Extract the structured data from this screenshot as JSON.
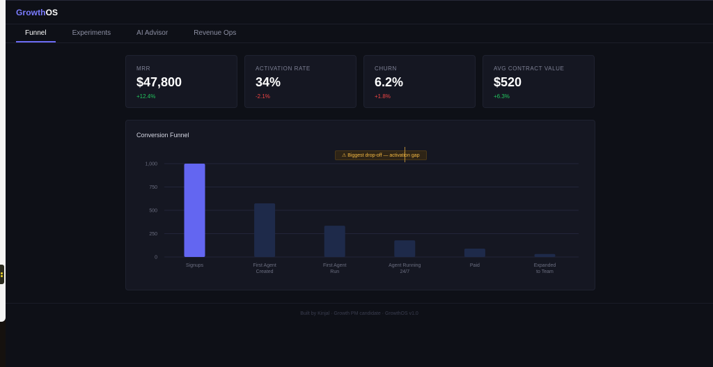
{
  "app": {
    "brand_part1": "Growth",
    "brand_part2": "OS"
  },
  "tabs": [
    {
      "label": "Funnel",
      "active": true
    },
    {
      "label": "Experiments",
      "active": false
    },
    {
      "label": "AI Advisor",
      "active": false
    },
    {
      "label": "Revenue Ops",
      "active": false
    }
  ],
  "kpis": [
    {
      "label": "MRR",
      "value": "$47,800",
      "delta": "+12.4%",
      "trend": "up"
    },
    {
      "label": "ACTIVATION RATE",
      "value": "34%",
      "delta": "-2.1%",
      "trend": "down"
    },
    {
      "label": "CHURN",
      "value": "6.2%",
      "delta": "+1.8%",
      "trend": "down"
    },
    {
      "label": "AVG CONTRACT VALUE",
      "value": "$520",
      "delta": "+6.3%",
      "trend": "up"
    }
  ],
  "funnel": {
    "title": "Conversion Funnel",
    "callout": "⚠ Biggest drop-off — activation gap"
  },
  "chart_data": {
    "type": "bar",
    "categories": [
      [
        "Signups"
      ],
      [
        "First Agent",
        "Created"
      ],
      [
        "First Agent",
        "Run"
      ],
      [
        "Agent Running",
        "24/7"
      ],
      [
        "Paid"
      ],
      [
        "Expanded",
        "to Team"
      ]
    ],
    "values": [
      1000,
      575,
      335,
      178,
      90,
      32
    ],
    "yticks": [
      "0",
      "250",
      "500",
      "750",
      "1,000"
    ],
    "ylim": [
      0,
      1000
    ],
    "grid": true,
    "highlight_index": 0,
    "colors": {
      "highlight": "#6366f1",
      "bar": "#1e2a4a",
      "grid": "#22253a",
      "tick": "#6b6e80"
    }
  },
  "footer": "Built by Kinjal · Growth PM candidate · GrowthOS v1.0"
}
